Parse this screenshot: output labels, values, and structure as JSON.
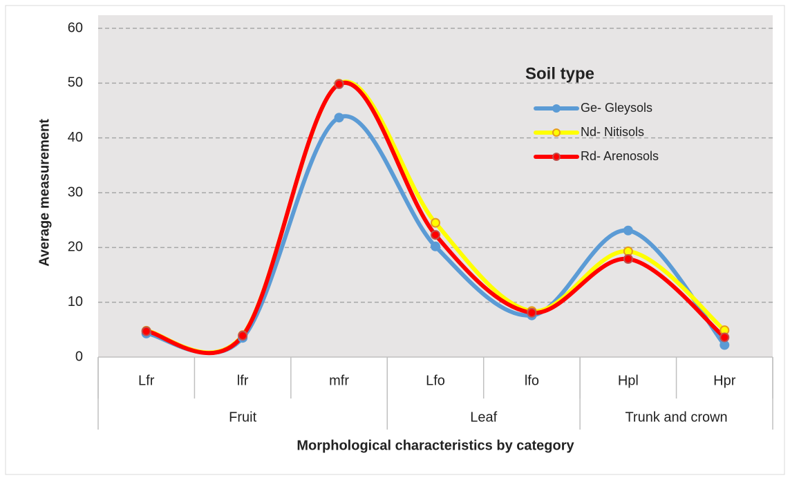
{
  "chart_data": {
    "type": "line",
    "y_axis_label": "Average measurement",
    "x_axis_label": "Morphological characteristics by category",
    "legend_title": "Soil type",
    "categories": [
      "Lfr",
      "lfr",
      "mfr",
      "Lfo",
      "lfo",
      "Hpl",
      "Hpr"
    ],
    "groups": [
      {
        "name": "Fruit",
        "count": 3
      },
      {
        "name": "Leaf",
        "count": 2
      },
      {
        "name": "Trunk and crown",
        "count": 2
      }
    ],
    "series": [
      {
        "name": "Ge- Gleysols",
        "color": "#5b9bd5",
        "marker_edge": "#5b9bd5",
        "values": [
          4.3,
          3.5,
          43.7,
          20.2,
          7.6,
          23.1,
          2.2
        ]
      },
      {
        "name": "Nd- Nitisols",
        "color": "#ffff00",
        "marker_edge": "#e69a1e",
        "values": [
          4.8,
          4.0,
          49.9,
          24.5,
          8.4,
          19.3,
          4.9
        ]
      },
      {
        "name": "Rd- Arenosols",
        "color": "#ff0000",
        "marker_edge": "#c0504d",
        "values": [
          4.7,
          3.9,
          49.8,
          22.3,
          8.1,
          17.9,
          3.6
        ]
      }
    ],
    "ylim": [
      0,
      60
    ],
    "yticks": [
      0,
      10,
      20,
      30,
      40,
      50,
      60
    ],
    "grid": true,
    "smooth": true
  }
}
